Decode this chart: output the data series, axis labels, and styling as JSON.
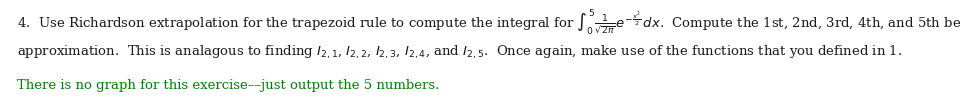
{
  "figsize": [
    9.6,
    1.04
  ],
  "dpi": 100,
  "background_color": "#ffffff",
  "text_color": "#1a1a1a",
  "green_color": "#008000",
  "fontsize": 9.5,
  "line3_color": "#008000"
}
